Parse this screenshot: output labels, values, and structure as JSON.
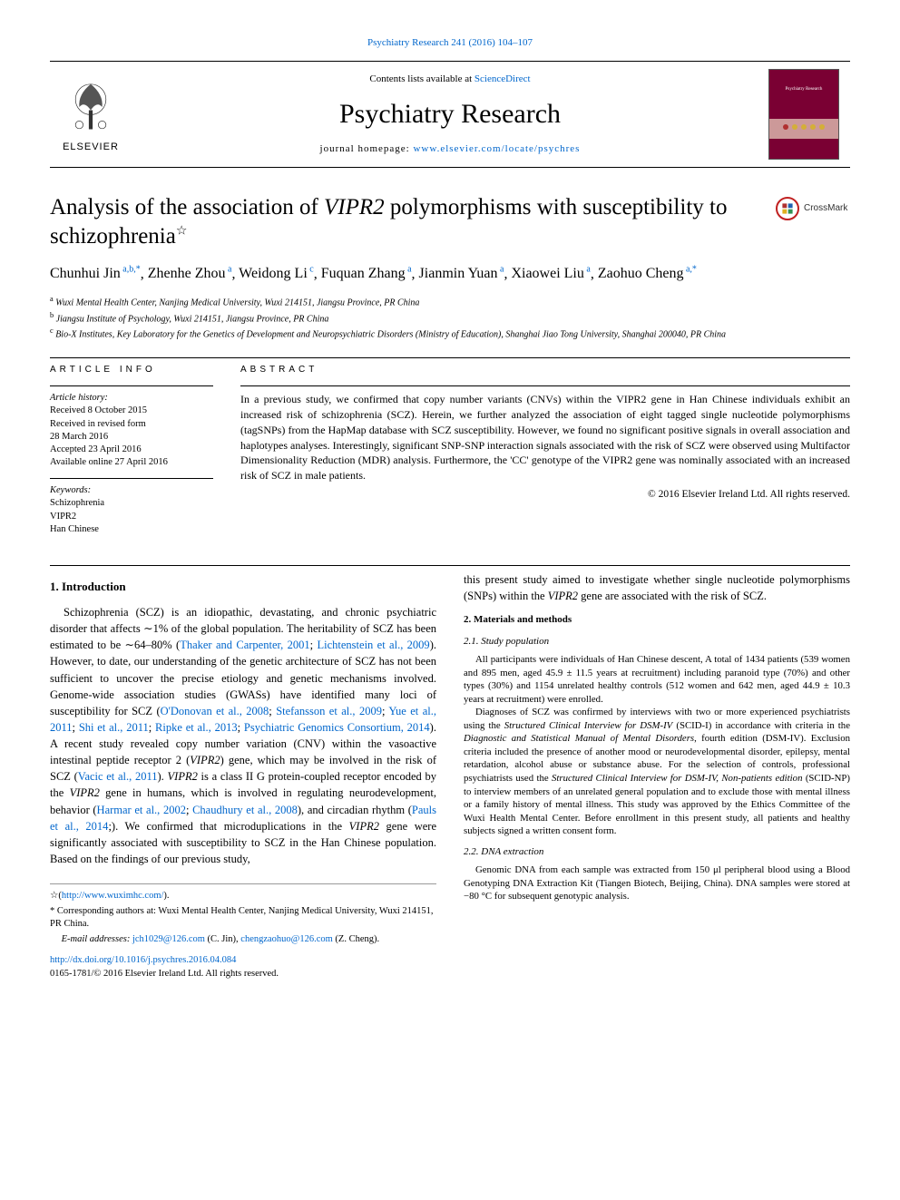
{
  "header": {
    "citation_pre": "Psychiatry Research 241 (2016) 104–107",
    "contents_pre": "Contents lists available at ",
    "contents_link": "ScienceDirect",
    "journal": "Psychiatry Research",
    "homepage_pre": "journal homepage: ",
    "homepage_link": "www.elsevier.com/locate/psychres",
    "elsevier": "ELSEVIER",
    "cover_text": "Psychiatry Research"
  },
  "crossmark": "CrossMark",
  "title_pre": "Analysis of the association of ",
  "title_gene": "VIPR2",
  "title_post": " polymorphisms with susceptibility to schizophrenia",
  "title_star": "☆",
  "authors": [
    {
      "name": "Chunhui Jin",
      "sup": "a,b,*"
    },
    {
      "name": "Zhenhe Zhou",
      "sup": "a"
    },
    {
      "name": "Weidong Li",
      "sup": "c"
    },
    {
      "name": "Fuquan Zhang",
      "sup": "a"
    },
    {
      "name": "Jianmin Yuan",
      "sup": "a"
    },
    {
      "name": "Xiaowei Liu",
      "sup": "a"
    },
    {
      "name": "Zaohuo Cheng",
      "sup": "a,*"
    }
  ],
  "affiliations": [
    {
      "key": "a",
      "text": "Wuxi Mental Health Center, Nanjing Medical University, Wuxi 214151, Jiangsu Province, PR China"
    },
    {
      "key": "b",
      "text": "Jiangsu Institute of Psychology, Wuxi 214151, Jiangsu Province, PR China"
    },
    {
      "key": "c",
      "text": "Bio-X Institutes, Key Laboratory for the Genetics of Development and Neuropsychiatric Disorders (Ministry of Education), Shanghai Jiao Tong University, Shanghai 200040, PR China"
    }
  ],
  "info_heading": "ARTICLE INFO",
  "abs_heading": "ABSTRACT",
  "history_label": "Article history:",
  "history": [
    "Received 8 October 2015",
    "Received in revised form",
    "28 March 2016",
    "Accepted 23 April 2016",
    "Available online 27 April 2016"
  ],
  "keywords_label": "Keywords:",
  "keywords": [
    "Schizophrenia",
    "VIPR2",
    "Han Chinese"
  ],
  "abstract": "In a previous study, we confirmed that copy number variants (CNVs) within the VIPR2 gene in Han Chinese individuals exhibit an increased risk of schizophrenia (SCZ). Herein, we further analyzed the association of eight tagged single nucleotide polymorphisms (tagSNPs) from the HapMap database with SCZ susceptibility. However, we found no significant positive signals in overall association and haplotypes analyses. Interestingly, significant SNP-SNP interaction signals associated with the risk of SCZ were observed using Multifactor Dimensionality Reduction (MDR) analysis. Furthermore, the 'CC' genotype of the VIPR2 gene was nominally associated with an increased risk of SCZ in male patients.",
  "copyright": "© 2016 Elsevier Ireland Ltd. All rights reserved.",
  "section1_heading": "1.  Introduction",
  "intro_para": "Schizophrenia (SCZ) is an idiopathic, devastating, and chronic psychiatric disorder that affects ∼1% of the global population. The heritability of SCZ has been estimated to be ∼64–80% (Thaker and Carpenter, 2001; Lichtenstein et al., 2009). However, to date, our understanding of the genetic architecture of SCZ has not been sufficient to uncover the precise etiology and genetic mechanisms involved. Genome-wide association studies (GWASs) have identified many loci of susceptibility for SCZ (O'Donovan et al., 2008; Stefansson et al., 2009; Yue et al., 2011; Shi et al., 2011; Ripke et al., 2013; Psychiatric Genomics Consortium, 2014). A recent study revealed copy number variation (CNV) within the vasoactive intestinal peptide receptor 2 (VIPR2) gene, which may be involved in the risk of SCZ (Vacic et al., 2011). VIPR2 is a class II G protein-coupled receptor encoded by the VIPR2 gene in humans, which is involved in regulating neurodevelopment, behavior (Harmar et al., 2002; Chaudhury et al., 2008), and circadian rhythm (Pauls et al., 2014;). We confirmed that microduplications in the VIPR2 gene were significantly associated with susceptibility to SCZ in the Han Chinese population. Based on the findings of our previous study,",
  "intro_para2": "this present study aimed to investigate whether single nucleotide polymorphisms (SNPs) within the VIPR2 gene are associated with the risk of SCZ.",
  "section2_heading": "2.  Materials and methods",
  "section21_heading": "2.1.  Study population",
  "sec21_p1": "All participants were individuals of Han Chinese descent, A total of 1434 patients (539 women and 895 men, aged 45.9 ± 11.5 years at recruitment) including paranoid type (70%) and other types (30%) and 1154 unrelated healthy controls (512 women and 642 men, aged 44.9 ± 10.3 years at recruitment) were enrolled.",
  "sec21_p2": "Diagnoses of SCZ was confirmed by interviews with two or more experienced psychiatrists using the Structured Clinical Interview for DSM-IV (SCID-I) in accordance with criteria in the Diagnostic and Statistical Manual of Mental Disorders, fourth edition (DSM-IV). Exclusion criteria included the presence of another mood or neurodevelopmental disorder, epilepsy, mental retardation, alcohol abuse or substance abuse. For the selection of controls, professional psychiatrists used the Structured Clinical Interview for DSM-IV, Non-patients edition (SCID-NP) to interview members of an unrelated general population and to exclude those with mental illness or a family history of mental illness. This study was approved by the Ethics Committee of the Wuxi Health Mental Center. Before enrollment in this present study, all patients and healthy subjects signed a written consent form.",
  "section22_heading": "2.2.  DNA extraction",
  "sec22_p1": "Genomic DNA from each sample was extracted from 150 μl peripheral blood using a Blood Genotyping DNA Extraction Kit (Tiangen Biotech, Beijing, China). DNA samples were stored at −80 °C for subsequent genotypic analysis.",
  "footnotes": {
    "star_pre": "☆(",
    "star_link": "http://www.wuximhc.com/",
    "star_post": ").",
    "corr": "* Corresponding authors at: Wuxi Mental Health Center, Nanjing Medical University, Wuxi 214151, PR China.",
    "email_pre": "E-mail addresses: ",
    "email1": "jch1029@126.com",
    "email1_who": " (C. Jin), ",
    "email2": "chengzaohuo@126.com",
    "email2_who": " (Z. Cheng)."
  },
  "bottom": {
    "doi": "http://dx.doi.org/10.1016/j.psychres.2016.04.084",
    "issn": "0165-1781/© 2016 Elsevier Ireland Ltd. All rights reserved."
  },
  "colors": {
    "link": "#0066cc",
    "text": "#000000",
    "cover_bg": "#7a0033",
    "crossmark_ring": "#c02020"
  }
}
